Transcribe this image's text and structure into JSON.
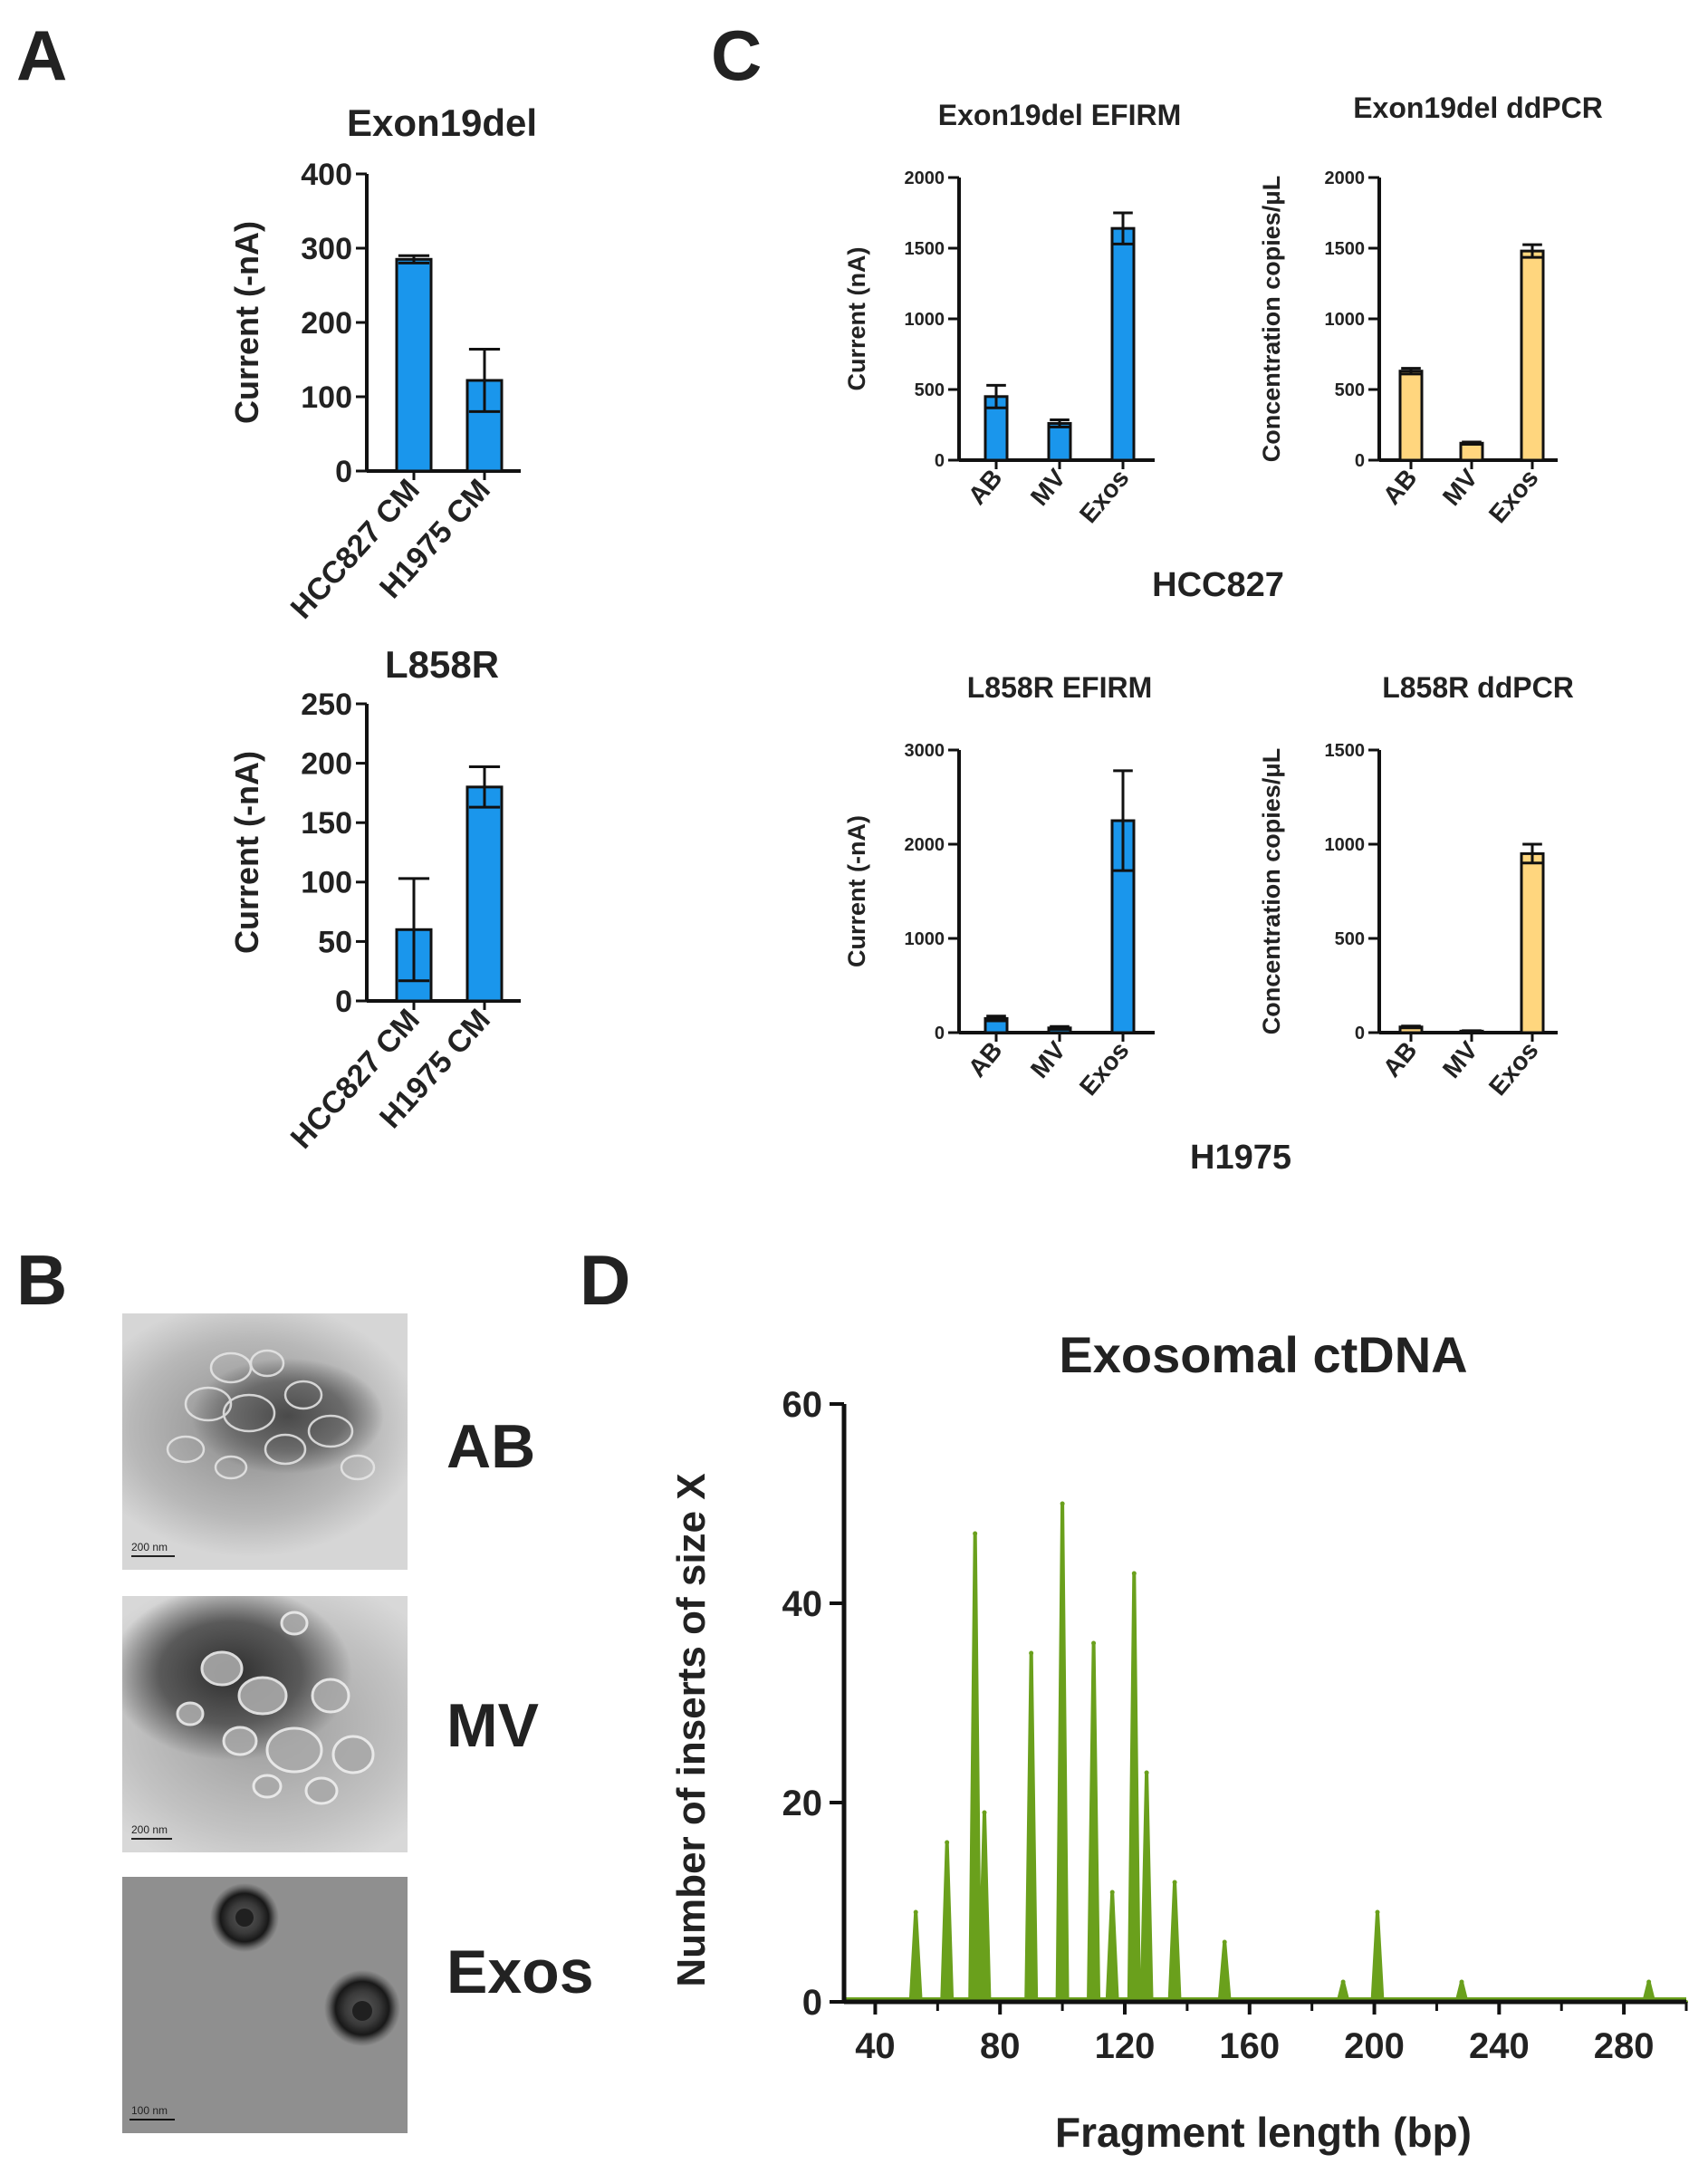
{
  "panels": {
    "A": "A",
    "B": "B",
    "C": "C",
    "D": "D"
  },
  "colors": {
    "blue": "#1a96ec",
    "yellow": "#ffd67e",
    "green": "#6aa01c",
    "axis": "#111111"
  },
  "group_labels": {
    "hcc827": "HCC827",
    "h1975": "H1975"
  },
  "micrographs": [
    {
      "label": "AB",
      "scale": "200 nm"
    },
    {
      "label": "MV",
      "scale": "200 nm"
    },
    {
      "label": "Exos",
      "scale": "100 nm"
    }
  ],
  "chart_data": [
    {
      "id": "A1",
      "type": "bar",
      "title": "Exon19del",
      "ylabel": "Current (-nA)",
      "xlabel": "",
      "categories": [
        "HCC827 CM",
        "H1975 CM"
      ],
      "values": [
        285,
        122
      ],
      "errors": [
        5,
        42
      ],
      "ylim": [
        0,
        400
      ],
      "yticks": [
        0,
        100,
        200,
        300,
        400
      ],
      "color": "#1a96ec"
    },
    {
      "id": "A2",
      "type": "bar",
      "title": "L858R",
      "ylabel": "Current (-nA)",
      "xlabel": "",
      "categories": [
        "HCC827 CM",
        "H1975 CM"
      ],
      "values": [
        60,
        180
      ],
      "errors": [
        43,
        17
      ],
      "ylim": [
        0,
        250
      ],
      "yticks": [
        0,
        50,
        100,
        150,
        200,
        250
      ],
      "color": "#1a96ec"
    },
    {
      "id": "C1",
      "type": "bar",
      "title": "Exon19del EFIRM",
      "ylabel": "Current (nA)",
      "xlabel": "",
      "categories": [
        "AB",
        "MV",
        "Exos"
      ],
      "values": [
        450,
        260,
        1640
      ],
      "errors": [
        80,
        25,
        110
      ],
      "ylim": [
        0,
        2000
      ],
      "yticks": [
        0,
        500,
        1000,
        1500,
        2000
      ],
      "color": "#1a96ec"
    },
    {
      "id": "C2",
      "type": "bar",
      "title": "Exon19del ddPCR",
      "ylabel": "Concentration  copies/μL",
      "xlabel": "",
      "categories": [
        "AB",
        "MV",
        "Exos"
      ],
      "values": [
        630,
        120,
        1480
      ],
      "errors": [
        20,
        8,
        45
      ],
      "ylim": [
        0,
        2000
      ],
      "yticks": [
        0,
        500,
        1000,
        1500,
        2000
      ],
      "color": "#ffd67e"
    },
    {
      "id": "C3",
      "type": "bar",
      "title": "L858R  EFIRM",
      "ylabel": "Current (-nA)",
      "xlabel": "",
      "categories": [
        "AB",
        "MV",
        "Exos"
      ],
      "values": [
        150,
        50,
        2250
      ],
      "errors": [
        25,
        15,
        530
      ],
      "ylim": [
        0,
        3000
      ],
      "yticks": [
        0,
        1000,
        2000,
        3000
      ],
      "color": "#1a96ec"
    },
    {
      "id": "C4",
      "type": "bar",
      "title": "L858R ddPCR",
      "ylabel": "Concentration  copies/μL",
      "xlabel": "",
      "categories": [
        "AB",
        "MV",
        "Exos"
      ],
      "values": [
        30,
        8,
        950
      ],
      "errors": [
        5,
        2,
        50
      ],
      "ylim": [
        0,
        1500
      ],
      "yticks": [
        0,
        500,
        1000,
        1500
      ],
      "color": "#ffd67e"
    },
    {
      "id": "D",
      "type": "area",
      "title": "Exosomal ctDNA",
      "xlabel": "Fragment length (bp)",
      "ylabel": "Number of inserts of  size X",
      "xlim": [
        30,
        300
      ],
      "ylim": [
        0,
        60
      ],
      "xticks": [
        40,
        80,
        120,
        160,
        200,
        240,
        280
      ],
      "yticks": [
        0,
        20,
        40,
        60
      ],
      "peaks": [
        {
          "x": 53,
          "y": 9
        },
        {
          "x": 63,
          "y": 16
        },
        {
          "x": 72,
          "y": 47
        },
        {
          "x": 75,
          "y": 19
        },
        {
          "x": 90,
          "y": 35
        },
        {
          "x": 100,
          "y": 50
        },
        {
          "x": 110,
          "y": 36
        },
        {
          "x": 116,
          "y": 11
        },
        {
          "x": 123,
          "y": 43
        },
        {
          "x": 127,
          "y": 23
        },
        {
          "x": 136,
          "y": 12
        },
        {
          "x": 152,
          "y": 6
        },
        {
          "x": 190,
          "y": 2
        },
        {
          "x": 201,
          "y": 9
        },
        {
          "x": 228,
          "y": 2
        },
        {
          "x": 288,
          "y": 2
        }
      ]
    }
  ]
}
